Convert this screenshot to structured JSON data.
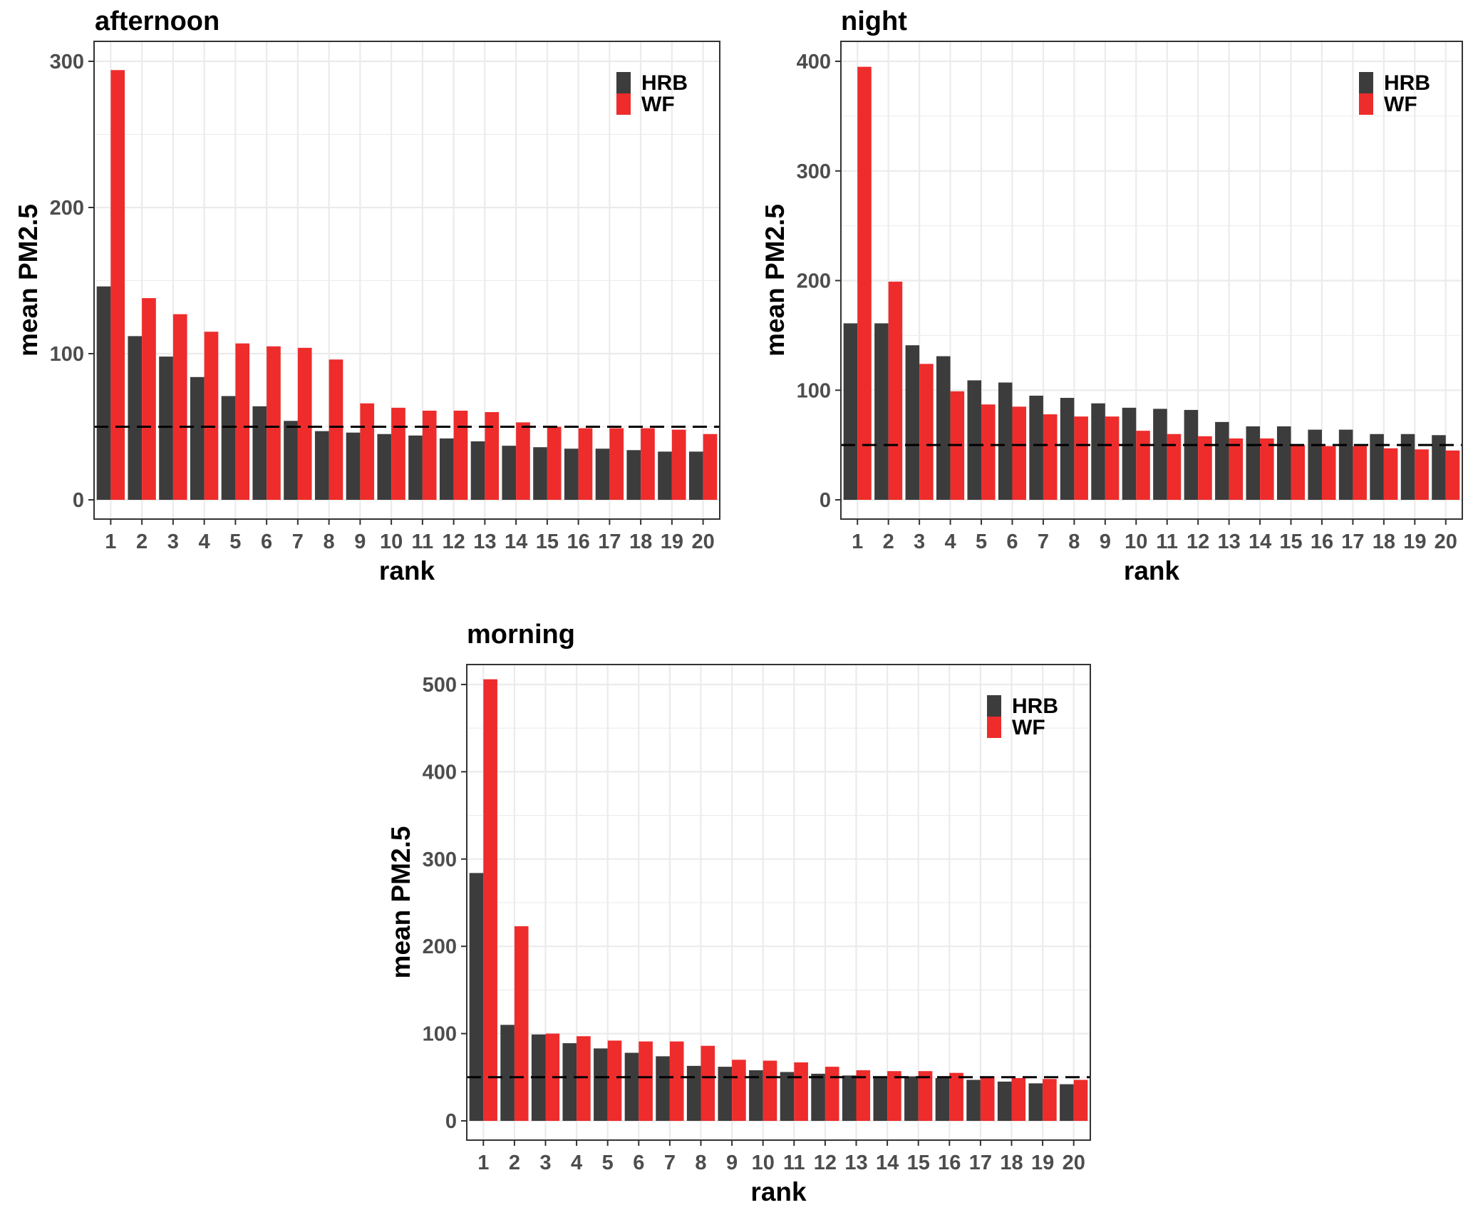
{
  "chart_data": [
    {
      "type": "bar",
      "title": "afternoon",
      "xlabel": "rank",
      "ylabel": "mean PM2.5",
      "ylim": [
        0,
        300
      ],
      "yticks": [
        0,
        100,
        200,
        300
      ],
      "reference_line": 50,
      "categories": [
        "1",
        "2",
        "3",
        "4",
        "5",
        "6",
        "7",
        "8",
        "9",
        "10",
        "11",
        "12",
        "13",
        "14",
        "15",
        "16",
        "17",
        "18",
        "19",
        "20"
      ],
      "legend": [
        "HRB",
        "WF"
      ],
      "colors": {
        "HRB": "#3c3c3c",
        "WF": "#ee2c2c"
      },
      "series": [
        {
          "name": "HRB",
          "values": [
            146,
            112,
            98,
            84,
            71,
            64,
            54,
            47,
            46,
            45,
            44,
            42,
            40,
            37,
            36,
            35,
            35,
            34,
            33,
            33
          ]
        },
        {
          "name": "WF",
          "values": [
            294,
            138,
            127,
            115,
            107,
            105,
            104,
            96,
            66,
            63,
            61,
            61,
            60,
            53,
            50,
            49,
            49,
            49,
            48,
            45
          ]
        }
      ]
    },
    {
      "type": "bar",
      "title": "night",
      "xlabel": "rank",
      "ylabel": "mean PM2.5",
      "ylim": [
        0,
        400
      ],
      "yticks": [
        0,
        100,
        200,
        300,
        400
      ],
      "reference_line": 50,
      "categories": [
        "1",
        "2",
        "3",
        "4",
        "5",
        "6",
        "7",
        "8",
        "9",
        "10",
        "11",
        "12",
        "13",
        "14",
        "15",
        "16",
        "17",
        "18",
        "19",
        "20"
      ],
      "legend": [
        "HRB",
        "WF"
      ],
      "colors": {
        "HRB": "#3c3c3c",
        "WF": "#ee2c2c"
      },
      "series": [
        {
          "name": "HRB",
          "values": [
            161,
            161,
            141,
            131,
            109,
            107,
            95,
            93,
            88,
            84,
            83,
            82,
            71,
            67,
            67,
            64,
            64,
            60,
            60,
            59
          ]
        },
        {
          "name": "WF",
          "values": [
            395,
            199,
            124,
            99,
            87,
            85,
            78,
            76,
            76,
            63,
            60,
            58,
            56,
            56,
            50,
            49,
            49,
            47,
            46,
            45
          ]
        }
      ]
    },
    {
      "type": "bar",
      "title": "morning",
      "xlabel": "rank",
      "ylabel": "mean PM2.5",
      "ylim": [
        0,
        500
      ],
      "yticks": [
        0,
        100,
        200,
        300,
        400,
        500
      ],
      "reference_line": 50,
      "categories": [
        "1",
        "2",
        "3",
        "4",
        "5",
        "6",
        "7",
        "8",
        "9",
        "10",
        "11",
        "12",
        "13",
        "14",
        "15",
        "16",
        "17",
        "18",
        "19",
        "20"
      ],
      "legend": [
        "HRB",
        "WF"
      ],
      "colors": {
        "HRB": "#3c3c3c",
        "WF": "#ee2c2c"
      },
      "series": [
        {
          "name": "HRB",
          "values": [
            284,
            110,
            99,
            89,
            83,
            78,
            74,
            63,
            62,
            58,
            56,
            54,
            52,
            51,
            51,
            49,
            47,
            45,
            43,
            42
          ]
        },
        {
          "name": "WF",
          "values": [
            506,
            223,
            100,
            97,
            92,
            91,
            91,
            86,
            70,
            69,
            67,
            62,
            58,
            57,
            57,
            55,
            51,
            49,
            48,
            47
          ]
        }
      ]
    }
  ]
}
